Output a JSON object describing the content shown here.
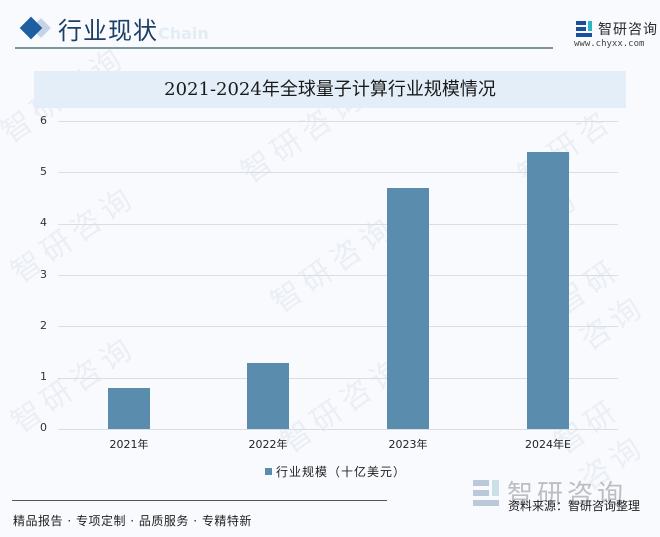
{
  "header": {
    "section_title": "行业现状",
    "section_subtitle": "Chain",
    "logo_name": "智研咨询",
    "logo_url": "www.chyxx.com"
  },
  "chart_title": "2021-2024年全球量子计算行业规模情况",
  "legend": {
    "label": "行业规模（十亿美元）",
    "color": "#5a8cad"
  },
  "y_ticks": [
    "0",
    "1",
    "2",
    "3",
    "4",
    "5",
    "6"
  ],
  "x_ticks": [
    "2021年",
    "2022年",
    "2023年",
    "2024年E"
  ],
  "footer": {
    "source": "资料来源：智研咨询整理",
    "slogan": "精品报告 · 专项定制 · 品质服务 · 专精特新",
    "watermark_logo": "智研咨询"
  },
  "watermark": "智研咨询",
  "chart_data": {
    "type": "bar",
    "title": "2021-2024年全球量子计算行业规模情况",
    "categories": [
      "2021年",
      "2022年",
      "2023年",
      "2024年E"
    ],
    "series": [
      {
        "name": "行业规模（十亿美元）",
        "values": [
          0.8,
          1.29,
          4.7,
          5.4
        ],
        "color": "#5a8cad"
      }
    ],
    "xlabel": "",
    "ylabel": "",
    "ylim": [
      0,
      6
    ],
    "yticks": [
      0,
      1,
      2,
      3,
      4,
      5,
      6
    ],
    "grid": true,
    "legend_position": "bottom"
  }
}
